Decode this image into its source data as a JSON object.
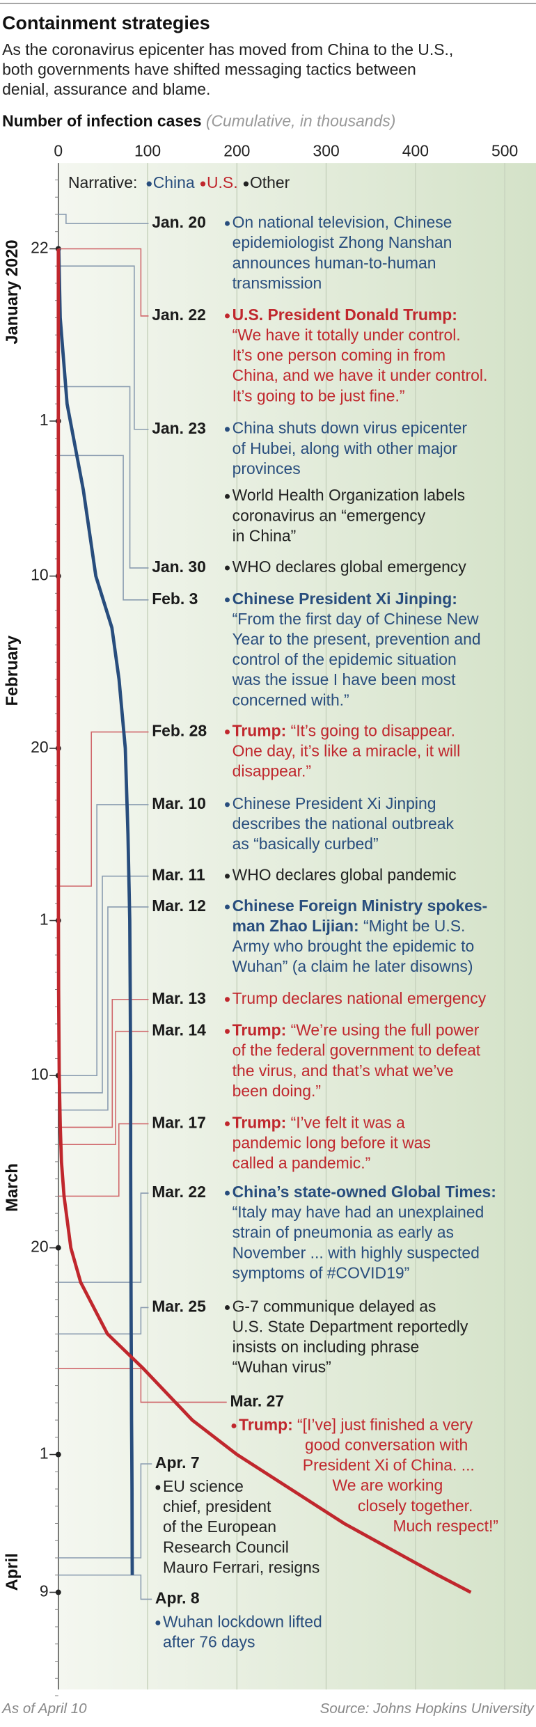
{
  "chart_data": {
    "type": "line",
    "title": "Containment strategies",
    "subtitle": [
      "As the coronavirus epicenter has moved from China to the U.S.,",
      "both governments have shifted messaging tactics between",
      "denial, assurance and blame."
    ],
    "value_axis_label": "Number of infection cases",
    "value_axis_note": "(Cumulative, in thousands)",
    "xlim": [
      0,
      535
    ],
    "xticks": [
      0,
      100,
      200,
      300,
      400,
      500
    ],
    "grid": true,
    "date_ticks": [
      {
        "value": "2020-01-22",
        "label": "22"
      },
      {
        "value": "2020-02-01",
        "label": "1"
      },
      {
        "value": "2020-02-10",
        "label": "10"
      },
      {
        "value": "2020-02-20",
        "label": "20"
      },
      {
        "value": "2020-03-01",
        "label": "1"
      },
      {
        "value": "2020-03-10",
        "label": "10"
      },
      {
        "value": "2020-03-20",
        "label": "20"
      },
      {
        "value": "2020-04-01",
        "label": "1"
      },
      {
        "value": "2020-04-09",
        "label": "9"
      }
    ],
    "months": [
      "January 2020",
      "February",
      "March",
      "April"
    ],
    "legend_title": "Narrative:",
    "x": [
      "2020-01-22",
      "2020-01-26",
      "2020-01-31",
      "2020-02-05",
      "2020-02-10",
      "2020-02-13",
      "2020-02-16",
      "2020-02-20",
      "2020-02-25",
      "2020-03-01",
      "2020-03-05",
      "2020-03-10",
      "2020-03-13",
      "2020-03-15",
      "2020-03-17",
      "2020-03-20",
      "2020-03-22",
      "2020-03-25",
      "2020-03-27",
      "2020-03-30",
      "2020-04-01",
      "2020-04-03",
      "2020-04-05",
      "2020-04-07",
      "2020-04-08",
      "2020-04-09"
    ],
    "series": [
      {
        "name": "China",
        "color": "#284d7d",
        "values": [
          0.5,
          2.1,
          9.8,
          28,
          42,
          60,
          68,
          75,
          78,
          80,
          80.5,
          81,
          81,
          81,
          81.1,
          81.3,
          81.4,
          81.6,
          81.8,
          82,
          82.3,
          82.5,
          82.6,
          82.7,
          82.8,
          null
        ]
      },
      {
        "name": "U.S.",
        "color": "#c0272d",
        "values": [
          0,
          0,
          0,
          0,
          0,
          0,
          0,
          0,
          0,
          0.1,
          0.3,
          1,
          2.2,
          3.5,
          6.4,
          14,
          25,
          55,
          95,
          150,
          200,
          260,
          320,
          390,
          425,
          462
        ]
      }
    ],
    "other": {
      "name": "Other",
      "color": "#222222"
    },
    "events": [
      {
        "date": "Jan. 20",
        "color": "#284d7d",
        "lines": [
          {
            "text": "On national television, Chinese"
          },
          {
            "text": "epidemiologist Zhong Nanshan"
          },
          {
            "text": "announces human-to-human"
          },
          {
            "text": "transmission"
          }
        ]
      },
      {
        "date": "Jan. 22",
        "color": "#c0272d",
        "lines": [
          {
            "bold": "U.S. President Donald Trump:"
          },
          {
            "text": "“We have it totally under control."
          },
          {
            "text": "It’s one person coming in from"
          },
          {
            "text": "China, and we have it under control."
          },
          {
            "text": "It’s going to be just fine.”"
          }
        ]
      },
      {
        "date": "Jan. 23",
        "color": "#284d7d",
        "lines": [
          {
            "text": "China shuts down virus epicenter"
          },
          {
            "text": "of Hubei, along with other major"
          },
          {
            "text": "provinces"
          }
        ]
      },
      {
        "color": "#222222",
        "lines": [
          {
            "text": "World Health Organization labels"
          },
          {
            "text": "coronavirus an “emergency"
          },
          {
            "text": "in China”"
          }
        ]
      },
      {
        "date": "Jan. 30",
        "color": "#222222",
        "lines": [
          {
            "text": "WHO declares global emergency"
          }
        ]
      },
      {
        "date": "Feb. 3",
        "color": "#284d7d",
        "lines": [
          {
            "bold": "Chinese President Xi Jinping:"
          },
          {
            "text": "“From the first day of Chinese New"
          },
          {
            "text": "Year to the present, prevention and"
          },
          {
            "text": "control of the epidemic situation"
          },
          {
            "text": "was the issue I have been most"
          },
          {
            "text": "concerned with.”"
          }
        ]
      },
      {
        "date": "Feb. 28",
        "color": "#c0272d",
        "lines": [
          {
            "bold": "Trump:",
            "text": "“It’s going to disappear."
          },
          {
            "text": "One day, it’s like a miracle, it will"
          },
          {
            "text": "disappear.”"
          }
        ]
      },
      {
        "date": "Mar. 10",
        "color": "#284d7d",
        "lines": [
          {
            "text": "Chinese President Xi Jinping"
          },
          {
            "text": "describes the national outbreak"
          },
          {
            "text": "as “basically curbed”"
          }
        ]
      },
      {
        "date": "Mar. 11",
        "color": "#222222",
        "lines": [
          {
            "text": "WHO declares global pandemic"
          }
        ]
      },
      {
        "date": "Mar. 12",
        "color": "#284d7d",
        "lines": [
          {
            "bold": "Chinese Foreign Ministry spokes-"
          },
          {
            "bold": "man Zhao Lijian:",
            "text": "“Might be U.S."
          },
          {
            "text": "Army who brought the epidemic to"
          },
          {
            "text": "Wuhan” (a claim he later disowns)"
          }
        ]
      },
      {
        "date": "Mar. 13",
        "color": "#c0272d",
        "lines": [
          {
            "text": "Trump declares national emergency"
          }
        ]
      },
      {
        "date": "Mar. 14",
        "color": "#c0272d",
        "lines": [
          {
            "bold": "Trump:",
            "text": "“We’re using the full power"
          },
          {
            "text": "of the federal government to defeat"
          },
          {
            "text": "the virus, and that’s what we’ve"
          },
          {
            "text": "been doing.”"
          }
        ]
      },
      {
        "date": "Mar. 17",
        "color": "#c0272d",
        "lines": [
          {
            "bold": "Trump:",
            "text": "“I’ve felt it was a"
          },
          {
            "text": "pandemic long before it was"
          },
          {
            "text": "called a pandemic.”"
          }
        ]
      },
      {
        "date": "Mar. 22",
        "color": "#284d7d",
        "lines": [
          {
            "bold": "China’s state-owned Global Times:"
          },
          {
            "text": "“Italy may have had an unexplained"
          },
          {
            "text": "strain of pneumonia as early as"
          },
          {
            "text": "November ... with highly suspected"
          },
          {
            "text": "symptoms of #COVID19”"
          }
        ]
      },
      {
        "date": "Mar. 25",
        "color": "#222222",
        "lines": [
          {
            "text": "G-7 communique delayed as"
          },
          {
            "text": "U.S. State Department reportedly"
          },
          {
            "text": "insists on including phrase"
          },
          {
            "text": "“Wuhan virus”"
          }
        ]
      },
      {
        "date": "Mar. 27",
        "color": "#c0272d",
        "lines": [
          {
            "bold": "Trump:",
            "text": "“[I’ve] just finished a very"
          },
          {
            "text": "good conversation with"
          },
          {
            "text": "President Xi of China. ..."
          },
          {
            "text": "We are working"
          },
          {
            "text": "closely together."
          },
          {
            "text": "Much respect!”"
          }
        ]
      },
      {
        "date": "Apr. 7",
        "color": "#222222",
        "lines": [
          {
            "text": "EU science"
          },
          {
            "text": "chief, president"
          },
          {
            "text": "of the European"
          },
          {
            "text": "Research Council"
          },
          {
            "text": "Mauro Ferrari, resigns"
          }
        ]
      },
      {
        "date": "Apr. 8",
        "color": "#284d7d",
        "lines": [
          {
            "text": "Wuhan lockdown lifted"
          },
          {
            "text": "after 76 days"
          }
        ]
      }
    ],
    "footnote": "As of April 10",
    "source": "Source: Johns Hopkins University"
  }
}
